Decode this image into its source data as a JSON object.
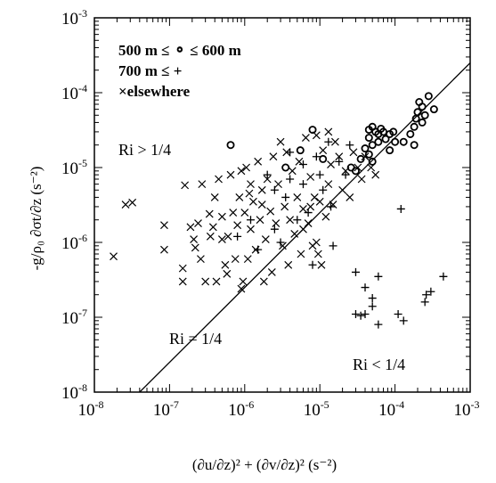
{
  "chart_data": {
    "type": "scatter",
    "xscale": "log",
    "yscale": "log",
    "xlim": [
      1e-08,
      0.001
    ],
    "ylim": [
      1e-08,
      0.001
    ],
    "xticks": [
      {
        "base": "10",
        "exp": "-8",
        "value": 1e-08
      },
      {
        "base": "10",
        "exp": "-7",
        "value": 1e-07
      },
      {
        "base": "10",
        "exp": "-6",
        "value": 1e-06
      },
      {
        "base": "10",
        "exp": "-5",
        "value": 1e-05
      },
      {
        "base": "10",
        "exp": "-4",
        "value": 0.0001
      },
      {
        "base": "10",
        "exp": "-3",
        "value": 0.001
      }
    ],
    "yticks": [
      {
        "base": "10",
        "exp": "-8",
        "value": 1e-08
      },
      {
        "base": "10",
        "exp": "-7",
        "value": 1e-07
      },
      {
        "base": "10",
        "exp": "-6",
        "value": 1e-06
      },
      {
        "base": "10",
        "exp": "-5",
        "value": 1e-05
      },
      {
        "base": "10",
        "exp": "-4",
        "value": 0.0001
      },
      {
        "base": "10",
        "exp": "-3",
        "value": 0.001
      }
    ],
    "xlabel": "(∂u/∂z)² + (∂v/∂z)² (s⁻²)",
    "ylabel": "-g/ρ₀ ∂σt/∂z (s⁻²)",
    "legend": {
      "placement": "top-left",
      "entries": [
        {
          "text": "500 m ≤ ⚬ ≤ 600 m",
          "marker": "circle"
        },
        {
          "text": "700 m ≤ +",
          "marker": "plus"
        },
        {
          "text": "×elsewhere",
          "marker": "cross"
        }
      ]
    },
    "annotations": {
      "ri_above": "Ri > 1/4",
      "ri_line": "Ri = 1/4",
      "ri_below": "Ri < 1/4"
    },
    "reference_line": {
      "label": "Ri = 1/4",
      "relation": "y = x / 4"
    },
    "series": [
      {
        "marker": "circle",
        "points": [
          [
            6.5e-07,
            2e-05
          ],
          [
            3.5e-06,
            1e-05
          ],
          [
            5.5e-06,
            1.7e-05
          ],
          [
            8e-06,
            3.2e-05
          ],
          [
            1.1e-05,
            1.3e-05
          ],
          [
            4.5e-05,
            3.2e-05
          ],
          [
            5e-05,
            3.5e-05
          ],
          [
            5.5e-05,
            3e-05
          ],
          [
            6e-05,
            2.8e-05
          ],
          [
            6.5e-05,
            3.3e-05
          ],
          [
            7e-05,
            3e-05
          ],
          [
            4.5e-05,
            2.5e-05
          ],
          [
            8.5e-05,
            2.8e-05
          ],
          [
            9.5e-05,
            3e-05
          ],
          [
            7.5e-05,
            2.4e-05
          ],
          [
            6e-05,
            2.2e-05
          ],
          [
            5e-05,
            2e-05
          ],
          [
            0.0001,
            2.2e-05
          ],
          [
            4e-05,
            1.8e-05
          ],
          [
            4.5e-05,
            1.5e-05
          ],
          [
            3.5e-05,
            1.3e-05
          ],
          [
            5e-05,
            1.2e-05
          ],
          [
            2.6e-05,
            1e-05
          ],
          [
            3e-05,
            9e-06
          ],
          [
            0.00013,
            2.2e-05
          ],
          [
            0.00016,
            2.8e-05
          ],
          [
            0.00018,
            3.5e-05
          ],
          [
            0.00019,
            4.5e-05
          ],
          [
            0.0002,
            5.5e-05
          ],
          [
            0.00023,
            6.5e-05
          ],
          [
            0.00021,
            7.5e-05
          ],
          [
            0.00025,
            5e-05
          ],
          [
            0.00028,
            9e-05
          ],
          [
            0.00033,
            6e-05
          ],
          [
            0.00023,
            4e-05
          ],
          [
            0.00018,
            2e-05
          ],
          [
            8.5e-05,
            1.7e-05
          ]
        ]
      },
      {
        "marker": "plus",
        "points": [
          [
            3e-05,
            4e-07
          ],
          [
            4e-05,
            2.5e-07
          ],
          [
            5e-05,
            1.8e-07
          ],
          [
            6e-05,
            3.5e-07
          ],
          [
            3e-05,
            1.1e-07
          ],
          [
            3.5e-05,
            1.05e-07
          ],
          [
            4e-05,
            1.1e-07
          ],
          [
            6e-05,
            8e-08
          ],
          [
            0.00012,
            2.8e-06
          ],
          [
            0.00011,
            1.1e-07
          ],
          [
            0.00013,
            9e-08
          ],
          [
            0.00025,
            1.6e-07
          ],
          [
            0.00026,
            2e-07
          ],
          [
            0.0003,
            2.2e-07
          ],
          [
            0.00044,
            3.5e-07
          ],
          [
            5e-05,
            1.4e-07
          ],
          [
            8e-06,
            5e-07
          ],
          [
            1.5e-05,
            9e-07
          ],
          [
            2.5e-06,
            1.5e-06
          ],
          [
            3.5e-06,
            4e-06
          ],
          [
            1.2e-06,
            2e-06
          ],
          [
            6e-06,
            6e-06
          ],
          [
            2e-06,
            8e-06
          ],
          [
            1.4e-05,
            3e-06
          ],
          [
            9e-06,
            1.4e-05
          ],
          [
            4e-06,
            7e-06
          ],
          [
            2.2e-05,
            8e-06
          ],
          [
            7e-06,
            2.5e-06
          ],
          [
            3e-06,
            1e-06
          ],
          [
            1.5e-06,
            8e-07
          ],
          [
            2.5e-05,
            2e-05
          ],
          [
            1.1e-05,
            5e-06
          ],
          [
            5e-06,
            2e-06
          ],
          [
            8e-07,
            1.2e-06
          ],
          [
            1.8e-05,
            1.2e-05
          ],
          [
            6e-06,
            1.1e-05
          ],
          [
            2.5e-06,
            5e-06
          ],
          [
            4e-06,
            1.6e-05
          ],
          [
            1.3e-05,
            2.2e-05
          ],
          [
            1e-05,
            8e-06
          ]
        ]
      },
      {
        "marker": "cross",
        "points": [
          [
            1.8e-08,
            6.5e-07
          ],
          [
            2.6e-08,
            3.2e-06
          ],
          [
            3.2e-08,
            3.4e-06
          ],
          [
            8.5e-08,
            1.7e-06
          ],
          [
            8.5e-08,
            8e-07
          ],
          [
            1.5e-07,
            3e-07
          ],
          [
            1.5e-07,
            4.5e-07
          ],
          [
            1.6e-07,
            5.8e-06
          ],
          [
            1.9e-07,
            1.6e-06
          ],
          [
            2.1e-07,
            1.1e-06
          ],
          [
            2.2e-07,
            8.5e-07
          ],
          [
            2.4e-07,
            1.8e-06
          ],
          [
            2.7e-07,
            6e-06
          ],
          [
            3e-07,
            3e-07
          ],
          [
            3.4e-07,
            2.4e-06
          ],
          [
            3.5e-07,
            1.2e-06
          ],
          [
            3.8e-07,
            1.6e-06
          ],
          [
            4e-07,
            4e-06
          ],
          [
            4.2e-07,
            3e-07
          ],
          [
            4.5e-07,
            7e-06
          ],
          [
            5e-07,
            2.2e-06
          ],
          [
            5.5e-07,
            5e-07
          ],
          [
            5.8e-07,
            3.8e-07
          ],
          [
            6e-07,
            1.2e-06
          ],
          [
            6.5e-07,
            8e-06
          ],
          [
            7e-07,
            2.5e-06
          ],
          [
            7.5e-07,
            6e-07
          ],
          [
            8e-07,
            1.7e-06
          ],
          [
            8.5e-07,
            4e-06
          ],
          [
            9e-07,
            9e-06
          ],
          [
            9.5e-07,
            3e-07
          ],
          [
            1e-06,
            2.5e-06
          ],
          [
            1.05e-06,
            1e-05
          ],
          [
            1.1e-06,
            6e-07
          ],
          [
            1.15e-06,
            4.5e-06
          ],
          [
            1.2e-06,
            1.5e-06
          ],
          [
            1.3e-06,
            3.5e-06
          ],
          [
            1.4e-06,
            8e-07
          ],
          [
            1.5e-06,
            1.2e-05
          ],
          [
            1.6e-06,
            2e-06
          ],
          [
            1.7e-06,
            5e-06
          ],
          [
            1.8e-06,
            3e-07
          ],
          [
            1.9e-06,
            1.1e-06
          ],
          [
            2e-06,
            7e-06
          ],
          [
            2.2e-06,
            2.6e-06
          ],
          [
            2.3e-06,
            4e-07
          ],
          [
            2.4e-06,
            1.4e-05
          ],
          [
            2.6e-06,
            1.8e-06
          ],
          [
            2.8e-06,
            6e-06
          ],
          [
            3e-06,
            2.2e-05
          ],
          [
            3.2e-06,
            9e-07
          ],
          [
            3.4e-06,
            3e-06
          ],
          [
            3.6e-06,
            1.6e-05
          ],
          [
            3.8e-06,
            5e-07
          ],
          [
            4e-06,
            2e-06
          ],
          [
            4.3e-06,
            9e-06
          ],
          [
            4.6e-06,
            1.3e-06
          ],
          [
            5e-06,
            4e-06
          ],
          [
            5.3e-06,
            1.2e-05
          ],
          [
            5.6e-06,
            7e-07
          ],
          [
            6e-06,
            2.8e-06
          ],
          [
            6.5e-06,
            2.5e-05
          ],
          [
            7e-06,
            1.8e-06
          ],
          [
            7.5e-06,
            7.5e-06
          ],
          [
            8e-06,
            9e-07
          ],
          [
            8.5e-06,
            4e-06
          ],
          [
            9e-06,
            1e-06
          ],
          [
            9.5e-06,
            7e-07
          ],
          [
            1e-05,
            3.5e-06
          ],
          [
            1.05e-05,
            5e-07
          ],
          [
            1.1e-05,
            1.7e-05
          ],
          [
            1.2e-05,
            2.2e-06
          ],
          [
            1.3e-05,
            6e-06
          ],
          [
            1.4e-05,
            1.1e-05
          ],
          [
            1.5e-05,
            3.2e-06
          ],
          [
            1.6e-05,
            2.2e-05
          ],
          [
            1.8e-05,
            1.4e-05
          ],
          [
            2e-05,
            5e-06
          ],
          [
            2.2e-05,
            9e-06
          ],
          [
            2.5e-05,
            4e-06
          ],
          [
            2.8e-05,
            1.6e-05
          ],
          [
            3.2e-05,
            1e-05
          ],
          [
            3.6e-05,
            7e-06
          ],
          [
            4e-05,
            1.4e-05
          ],
          [
            4.8e-05,
            1e-05
          ],
          [
            5.5e-05,
            8e-06
          ],
          [
            9e-06,
            2.7e-05
          ],
          [
            1.3e-05,
            3e-05
          ],
          [
            7.5e-06,
            3e-06
          ],
          [
            1.7e-06,
            3.2e-06
          ],
          [
            5e-07,
            1.1e-06
          ],
          [
            9e-07,
            2.4e-07
          ],
          [
            2.6e-07,
            6e-07
          ],
          [
            1.2e-06,
            6e-06
          ],
          [
            6e-06,
            1.5e-06
          ]
        ]
      }
    ]
  }
}
